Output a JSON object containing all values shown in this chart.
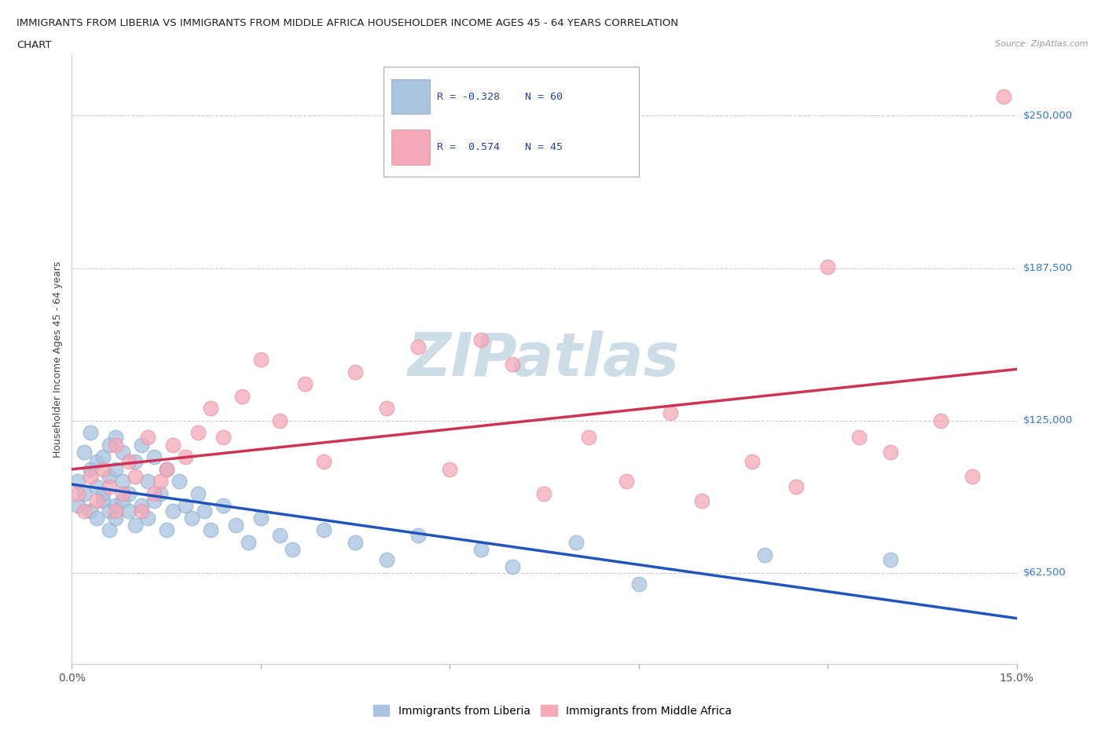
{
  "title_line1": "IMMIGRANTS FROM LIBERIA VS IMMIGRANTS FROM MIDDLE AFRICA HOUSEHOLDER INCOME AGES 45 - 64 YEARS CORRELATION",
  "title_line2": "CHART",
  "source": "Source: ZipAtlas.com",
  "ylabel": "Householder Income Ages 45 - 64 years",
  "xlim": [
    0.0,
    0.15
  ],
  "ylim": [
    25000,
    275000
  ],
  "ytick_values": [
    62500,
    125000,
    187500,
    250000
  ],
  "ytick_labels": [
    "$62,500",
    "$125,000",
    "$187,500",
    "$250,000"
  ],
  "liberia_R": -0.328,
  "liberia_N": 60,
  "middle_africa_R": 0.574,
  "middle_africa_N": 45,
  "liberia_color": "#a8c4e0",
  "liberia_edge_color": "#8aaece",
  "liberia_line_color": "#2255bb",
  "middle_africa_color": "#f4a8b8",
  "middle_africa_edge_color": "#e890a0",
  "middle_africa_line_color": "#cc3355",
  "watermark": "ZIPatlas",
  "watermark_color": "#ccdde8",
  "background_color": "#ffffff",
  "liberia_scatter_x": [
    0.001,
    0.001,
    0.002,
    0.002,
    0.003,
    0.003,
    0.003,
    0.004,
    0.004,
    0.004,
    0.005,
    0.005,
    0.005,
    0.006,
    0.006,
    0.006,
    0.006,
    0.007,
    0.007,
    0.007,
    0.007,
    0.008,
    0.008,
    0.008,
    0.009,
    0.009,
    0.01,
    0.01,
    0.011,
    0.011,
    0.012,
    0.012,
    0.013,
    0.013,
    0.014,
    0.015,
    0.015,
    0.016,
    0.017,
    0.018,
    0.019,
    0.02,
    0.021,
    0.022,
    0.024,
    0.026,
    0.028,
    0.03,
    0.033,
    0.035,
    0.04,
    0.045,
    0.05,
    0.055,
    0.065,
    0.07,
    0.08,
    0.09,
    0.11,
    0.13
  ],
  "liberia_scatter_y": [
    100000,
    90000,
    112000,
    95000,
    105000,
    88000,
    120000,
    98000,
    108000,
    85000,
    110000,
    92000,
    95000,
    115000,
    88000,
    102000,
    80000,
    105000,
    90000,
    118000,
    85000,
    100000,
    92000,
    112000,
    95000,
    88000,
    108000,
    82000,
    115000,
    90000,
    100000,
    85000,
    110000,
    92000,
    95000,
    105000,
    80000,
    88000,
    100000,
    90000,
    85000,
    95000,
    88000,
    80000,
    90000,
    82000,
    75000,
    85000,
    78000,
    72000,
    80000,
    75000,
    68000,
    78000,
    72000,
    65000,
    75000,
    58000,
    70000,
    68000
  ],
  "middle_africa_scatter_x": [
    0.001,
    0.002,
    0.003,
    0.004,
    0.005,
    0.006,
    0.007,
    0.007,
    0.008,
    0.009,
    0.01,
    0.011,
    0.012,
    0.013,
    0.014,
    0.015,
    0.016,
    0.018,
    0.02,
    0.022,
    0.024,
    0.027,
    0.03,
    0.033,
    0.037,
    0.04,
    0.045,
    0.05,
    0.055,
    0.06,
    0.065,
    0.07,
    0.075,
    0.082,
    0.088,
    0.095,
    0.1,
    0.108,
    0.115,
    0.12,
    0.125,
    0.13,
    0.138,
    0.143,
    0.148
  ],
  "middle_africa_scatter_y": [
    95000,
    88000,
    102000,
    92000,
    105000,
    98000,
    88000,
    115000,
    95000,
    108000,
    102000,
    88000,
    118000,
    95000,
    100000,
    105000,
    115000,
    110000,
    120000,
    130000,
    118000,
    135000,
    150000,
    125000,
    140000,
    108000,
    145000,
    130000,
    155000,
    105000,
    158000,
    148000,
    95000,
    118000,
    100000,
    128000,
    92000,
    108000,
    98000,
    188000,
    118000,
    112000,
    125000,
    102000,
    258000
  ]
}
